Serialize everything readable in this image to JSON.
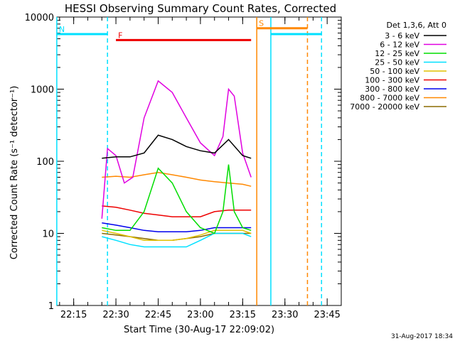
{
  "chart_data": {
    "type": "line",
    "title": "HESSI Observing Summary Count Rates, Corrected",
    "xlabel": "Start Time (30-Aug-17 22:09:02)",
    "ylabel": "Corrected Count Rate (s⁻¹ detector⁻¹)",
    "x_axis": {
      "type": "time",
      "start": "22:09:02",
      "end": "23:50",
      "ticks": [
        "22:15",
        "22:30",
        "22:45",
        "23:00",
        "23:15",
        "23:30",
        "23:45"
      ]
    },
    "y_axis": {
      "scale": "log",
      "ylim": [
        1,
        10000
      ],
      "ticks": [
        "1",
        "10",
        "100",
        "1000",
        "10000"
      ]
    },
    "legend_title": "Det 1,3,6, Att 0",
    "legend_position": "right",
    "date_stamp": "31-Aug-2017 18:34",
    "series": [
      {
        "name": "3 - 6 keV",
        "color": "#000000",
        "x": [
          "22:25",
          "22:30",
          "22:35",
          "22:40",
          "22:45",
          "22:50",
          "22:55",
          "23:00",
          "23:05",
          "23:10",
          "23:15",
          "23:18"
        ],
        "values": [
          110,
          115,
          115,
          130,
          230,
          200,
          160,
          140,
          130,
          200,
          120,
          110
        ]
      },
      {
        "name": "6 - 12 keV",
        "color": "#e000e0",
        "x": [
          "22:25",
          "22:27",
          "22:30",
          "22:33",
          "22:36",
          "22:40",
          "22:45",
          "22:50",
          "22:55",
          "23:00",
          "23:05",
          "23:08",
          "23:10",
          "23:12",
          "23:15",
          "23:18"
        ],
        "values": [
          16,
          150,
          120,
          50,
          60,
          400,
          1300,
          900,
          400,
          180,
          120,
          220,
          1000,
          800,
          130,
          60
        ]
      },
      {
        "name": "12 - 25 keV",
        "color": "#00dd00",
        "x": [
          "22:25",
          "22:30",
          "22:35",
          "22:40",
          "22:45",
          "22:50",
          "22:55",
          "23:00",
          "23:05",
          "23:08",
          "23:10",
          "23:12",
          "23:15",
          "23:18"
        ],
        "values": [
          12,
          11,
          11,
          20,
          80,
          50,
          20,
          12,
          10,
          20,
          90,
          20,
          12,
          11
        ]
      },
      {
        "name": "25 - 50 keV",
        "color": "#00e0ff",
        "x": [
          "22:25",
          "22:30",
          "22:35",
          "22:40",
          "22:45",
          "22:50",
          "22:55",
          "23:00",
          "23:05",
          "23:10",
          "23:15",
          "23:18"
        ],
        "values": [
          9,
          8,
          7,
          6.5,
          6.5,
          6.5,
          6.5,
          8,
          10,
          10,
          10,
          9
        ]
      },
      {
        "name": "50 - 100 keV",
        "color": "#e0c000",
        "x": [
          "22:25",
          "22:30",
          "22:35",
          "22:40",
          "22:45",
          "22:50",
          "22:55",
          "23:00",
          "23:05",
          "23:10",
          "23:15",
          "23:18"
        ],
        "values": [
          11,
          10,
          9,
          8,
          8,
          8,
          8.5,
          9.5,
          11,
          11,
          11,
          10
        ]
      },
      {
        "name": "100 - 300 keV",
        "color": "#ee0000",
        "x": [
          "22:25",
          "22:30",
          "22:35",
          "22:40",
          "22:45",
          "22:50",
          "22:55",
          "23:00",
          "23:05",
          "23:10",
          "23:15",
          "23:18"
        ],
        "values": [
          24,
          23,
          21,
          19,
          18,
          17,
          17,
          17,
          20,
          21,
          21,
          21
        ]
      },
      {
        "name": "300 - 800 keV",
        "color": "#0000ee",
        "x": [
          "22:25",
          "22:30",
          "22:35",
          "22:40",
          "22:45",
          "22:50",
          "22:55",
          "23:00",
          "23:05",
          "23:10",
          "23:15",
          "23:18"
        ],
        "values": [
          14,
          13,
          12,
          11,
          10.5,
          10.5,
          10.5,
          11,
          12,
          12,
          12,
          12
        ]
      },
      {
        "name": "800 - 7000 keV",
        "color": "#ff8800",
        "x": [
          "22:25",
          "22:30",
          "22:35",
          "22:40",
          "22:45",
          "22:50",
          "22:55",
          "23:00",
          "23:05",
          "23:10",
          "23:15",
          "23:18"
        ],
        "values": [
          60,
          62,
          60,
          65,
          70,
          65,
          60,
          55,
          52,
          50,
          48,
          45
        ]
      },
      {
        "name": "7000 - 20000 keV",
        "color": "#8b6b00",
        "x": [
          "22:25",
          "22:30",
          "22:35",
          "22:40",
          "22:45",
          "22:50",
          "22:55",
          "23:00",
          "23:05",
          "23:10",
          "23:15",
          "23:18"
        ],
        "values": [
          10,
          9.5,
          9,
          8.5,
          8,
          8,
          8.5,
          9,
          10,
          10,
          10,
          10
        ]
      }
    ],
    "flags": [
      {
        "label": "N",
        "color": "#00e0ff",
        "x_start": "22:09",
        "x_end": "22:27",
        "level": 5800
      },
      {
        "label": "F",
        "color": "#ee0000",
        "x_start": "22:30",
        "x_end": "23:18",
        "level": 4800
      },
      {
        "label": "S",
        "color": "#ff8800",
        "x_start": "23:20",
        "x_end": "23:38",
        "level": 7000
      },
      {
        "label": "",
        "color": "#00e0ff",
        "x_start": "23:25",
        "x_end": "23:43",
        "level": 5800
      }
    ],
    "vertical_markers": [
      {
        "x": "22:09",
        "color": "#00e0ff",
        "style": "solid"
      },
      {
        "x": "22:27",
        "color": "#00e0ff",
        "style": "dashed"
      },
      {
        "x": "23:20",
        "color": "#ff8800",
        "style": "solid"
      },
      {
        "x": "23:25",
        "color": "#00e0ff",
        "style": "solid"
      },
      {
        "x": "23:38",
        "color": "#ff8800",
        "style": "dashed"
      },
      {
        "x": "23:43",
        "color": "#00e0ff",
        "style": "dashed"
      }
    ]
  }
}
